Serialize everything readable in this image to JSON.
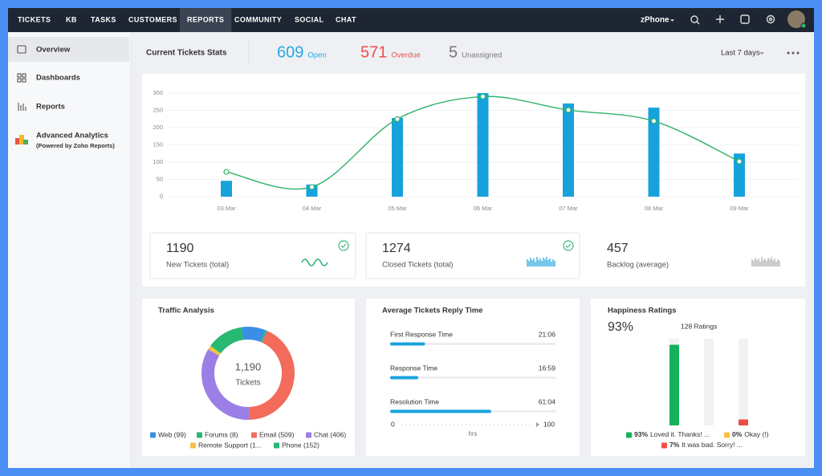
{
  "nav": {
    "items": [
      "TICKETS",
      "KB",
      "TASKS",
      "CUSTOMERS",
      "REPORTS",
      "COMMUNITY",
      "SOCIAL",
      "CHAT"
    ],
    "active": 4,
    "user_menu": "zPhone"
  },
  "sidebar": {
    "items": [
      "Overview",
      "Dashboards",
      "Reports",
      "Advanced Analytics"
    ],
    "active": 0,
    "note": "(Powered by Zoho Reports)"
  },
  "header": {
    "title": "Current Tickets Stats",
    "stats": [
      {
        "value": 609,
        "label": "Open",
        "color": "#29a9e1"
      },
      {
        "value": 571,
        "label": "Overdue",
        "color": "#ef4f45"
      },
      {
        "value": 5,
        "label": "Unassigned",
        "color": "#777777"
      }
    ],
    "period": "Last 7 days"
  },
  "summary": [
    {
      "value": 1190,
      "label": "New Tickets (total)",
      "checked": true
    },
    {
      "value": 1274,
      "label": "Closed Tickets (total)",
      "checked": true
    },
    {
      "value": 457,
      "label": "Backlog (average)",
      "checked": false
    }
  ],
  "chart_data": [
    {
      "type": "combo",
      "categories": [
        "03 Mar",
        "04 Mar",
        "05 Mar",
        "06 Mar",
        "07 Mar",
        "08 Mar",
        "09 Mar"
      ],
      "series": [
        {
          "type": "bar",
          "color": "#17a2dc",
          "values": [
            46,
            35,
            228,
            300,
            270,
            258,
            125
          ]
        },
        {
          "type": "line",
          "color": "#2fb36b",
          "values": [
            72,
            28,
            225,
            290,
            251,
            219,
            102
          ]
        }
      ],
      "ylim": [
        0,
        300
      ],
      "yticks": [
        0,
        50,
        100,
        150,
        200,
        250,
        300
      ],
      "grid": true
    },
    {
      "type": "donut",
      "title": "Traffic Analysis",
      "center_value": "1,190",
      "center_label": "Tickets",
      "categories": [
        "Web (99)",
        "Forums (8)",
        "Email (509)",
        "Chat (406)",
        "Remote Support (1...",
        "Phone (152)"
      ],
      "values": [
        99,
        8,
        509,
        406,
        16,
        152
      ],
      "colors": [
        "#3a8ee6",
        "#2bb673",
        "#f26b5b",
        "#9b7fe6",
        "#f5c242",
        "#27b872"
      ]
    },
    {
      "type": "hbar",
      "title": "Average Tickets Reply Time",
      "categories": [
        "First Response Time",
        "Response Time",
        "Resolution Time"
      ],
      "values": [
        21.1,
        16.983,
        61.067
      ],
      "value_labels": [
        "21:06",
        "16:59",
        "61:04"
      ],
      "color": "#1aa3dd",
      "xlim": [
        0,
        100
      ],
      "xticks": [
        0,
        100
      ],
      "xlabel": "hrs"
    },
    {
      "type": "vbar",
      "title": "Happiness Ratings",
      "headline": "93%",
      "subtitle": "128 Ratings",
      "categories": [
        "Loved it. Thanks! ...",
        "Okay (!)",
        "It was bad. Sorry! ..."
      ],
      "values": [
        93,
        0,
        7
      ],
      "value_labels": [
        "93%",
        "0%",
        "7%"
      ],
      "colors": [
        "#16b05a",
        "#f6c243",
        "#ee4d47"
      ],
      "ylim": [
        0,
        100
      ]
    }
  ]
}
